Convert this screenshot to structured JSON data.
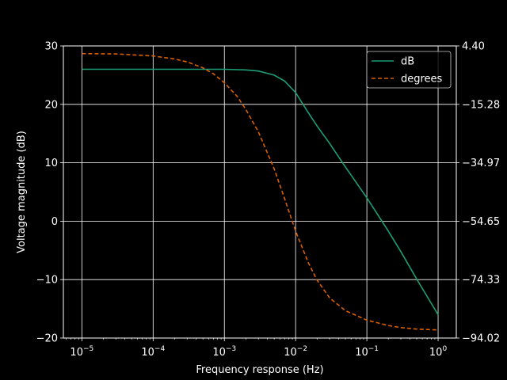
{
  "chart_data": {
    "type": "line",
    "title": "",
    "xlabel": "Frequency response (Hz)",
    "ylabel": "Voltage magnitude (dB)",
    "x_scale": "log",
    "xlim": [
      5.5e-06,
      1.8
    ],
    "ylim": [
      -20,
      30
    ],
    "y2lim": [
      -94.02,
      4.4
    ],
    "grid": true,
    "legend_position": "top-right",
    "background": "#000000",
    "x_ticks": [
      {
        "value": 1e-05,
        "base": "10",
        "exp": "−5"
      },
      {
        "value": 0.0001,
        "base": "10",
        "exp": "−4"
      },
      {
        "value": 0.001,
        "base": "10",
        "exp": "−3"
      },
      {
        "value": 0.01,
        "base": "10",
        "exp": "−2"
      },
      {
        "value": 0.1,
        "base": "10",
        "exp": "−1"
      },
      {
        "value": 1,
        "base": "10",
        "exp": "0"
      }
    ],
    "y_ticks": [
      {
        "value": 30,
        "label": "30"
      },
      {
        "value": 20,
        "label": "20"
      },
      {
        "value": 10,
        "label": "10"
      },
      {
        "value": 0,
        "label": "0"
      },
      {
        "value": -10,
        "label": "−10"
      },
      {
        "value": -20,
        "label": "−20"
      }
    ],
    "y2_ticks": [
      {
        "value": 4.4,
        "label": "4.40"
      },
      {
        "value": -15.28,
        "label": "−15.28"
      },
      {
        "value": -34.97,
        "label": "−34.97"
      },
      {
        "value": -54.65,
        "label": "−54.65"
      },
      {
        "value": -74.33,
        "label": "−74.33"
      },
      {
        "value": -94.02,
        "label": "−94.02"
      }
    ],
    "series": [
      {
        "name": "dB",
        "axis": "left",
        "color": "#1b9e77",
        "dash": "solid",
        "x": [
          1e-05,
          0.0001,
          0.001,
          0.002,
          0.003,
          0.005,
          0.007,
          0.01,
          0.015,
          0.02,
          0.03,
          0.05,
          0.1,
          0.2,
          0.3,
          0.5,
          1
        ],
        "y": [
          26,
          26,
          26,
          25.9,
          25.7,
          25.0,
          24.0,
          22.0,
          18.6,
          16.3,
          13.3,
          9.3,
          4.0,
          -1.7,
          -5.2,
          -9.9,
          -16.0
        ]
      },
      {
        "name": "degrees",
        "axis": "right",
        "color": "#d95f02",
        "dash": "dashed",
        "x": [
          1e-05,
          3e-05,
          0.0001,
          0.0002,
          0.0003,
          0.0005,
          0.0007,
          0.001,
          0.0015,
          0.002,
          0.003,
          0.005,
          0.007,
          0.01,
          0.015,
          0.02,
          0.03,
          0.05,
          0.1,
          0.2,
          0.3,
          0.5,
          1
        ],
        "y": [
          1.8,
          1.7,
          1.0,
          0.0,
          -1.0,
          -3.0,
          -5.0,
          -8.0,
          -12.5,
          -17.0,
          -24.5,
          -37.0,
          -47.0,
          -58.0,
          -68.5,
          -74.5,
          -80.5,
          -84.8,
          -88.0,
          -89.8,
          -90.5,
          -91.0,
          -91.3
        ]
      }
    ]
  }
}
